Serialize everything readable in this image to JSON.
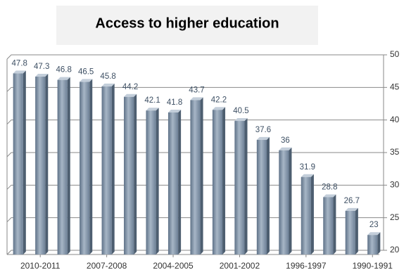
{
  "chart_data": {
    "type": "bar",
    "title": "Access to higher education",
    "categories": [
      null,
      "2010-2011",
      null,
      null,
      "2007-2008",
      null,
      null,
      "2004-2005",
      null,
      null,
      "2001-2002",
      null,
      null,
      "1996-1997",
      null,
      null,
      "1990-1991"
    ],
    "values": [
      47.8,
      47.3,
      46.8,
      46.5,
      45.8,
      44.2,
      42.1,
      41.8,
      43.7,
      42.2,
      40.5,
      37.6,
      36,
      31.9,
      28.8,
      26.7,
      23
    ],
    "color": "#7d8fa3",
    "ylim": [
      20,
      50
    ],
    "yticks": [
      20,
      25,
      30,
      35,
      40,
      45,
      50
    ],
    "grid": true
  }
}
